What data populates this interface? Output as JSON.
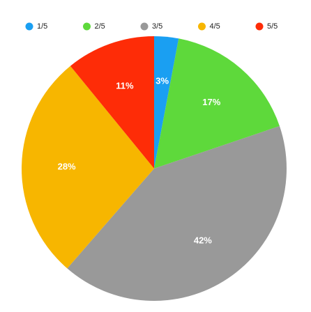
{
  "chart_data": {
    "type": "pie",
    "categories": [
      "1/5",
      "2/5",
      "3/5",
      "4/5",
      "5/5"
    ],
    "values": [
      3,
      17,
      42,
      28,
      11
    ],
    "value_labels": [
      "3%",
      "17%",
      "42%",
      "28%",
      "11%"
    ],
    "colors": [
      "#1a9ff2",
      "#5ed93b",
      "#999999",
      "#f7b600",
      "#fe2c07"
    ]
  }
}
